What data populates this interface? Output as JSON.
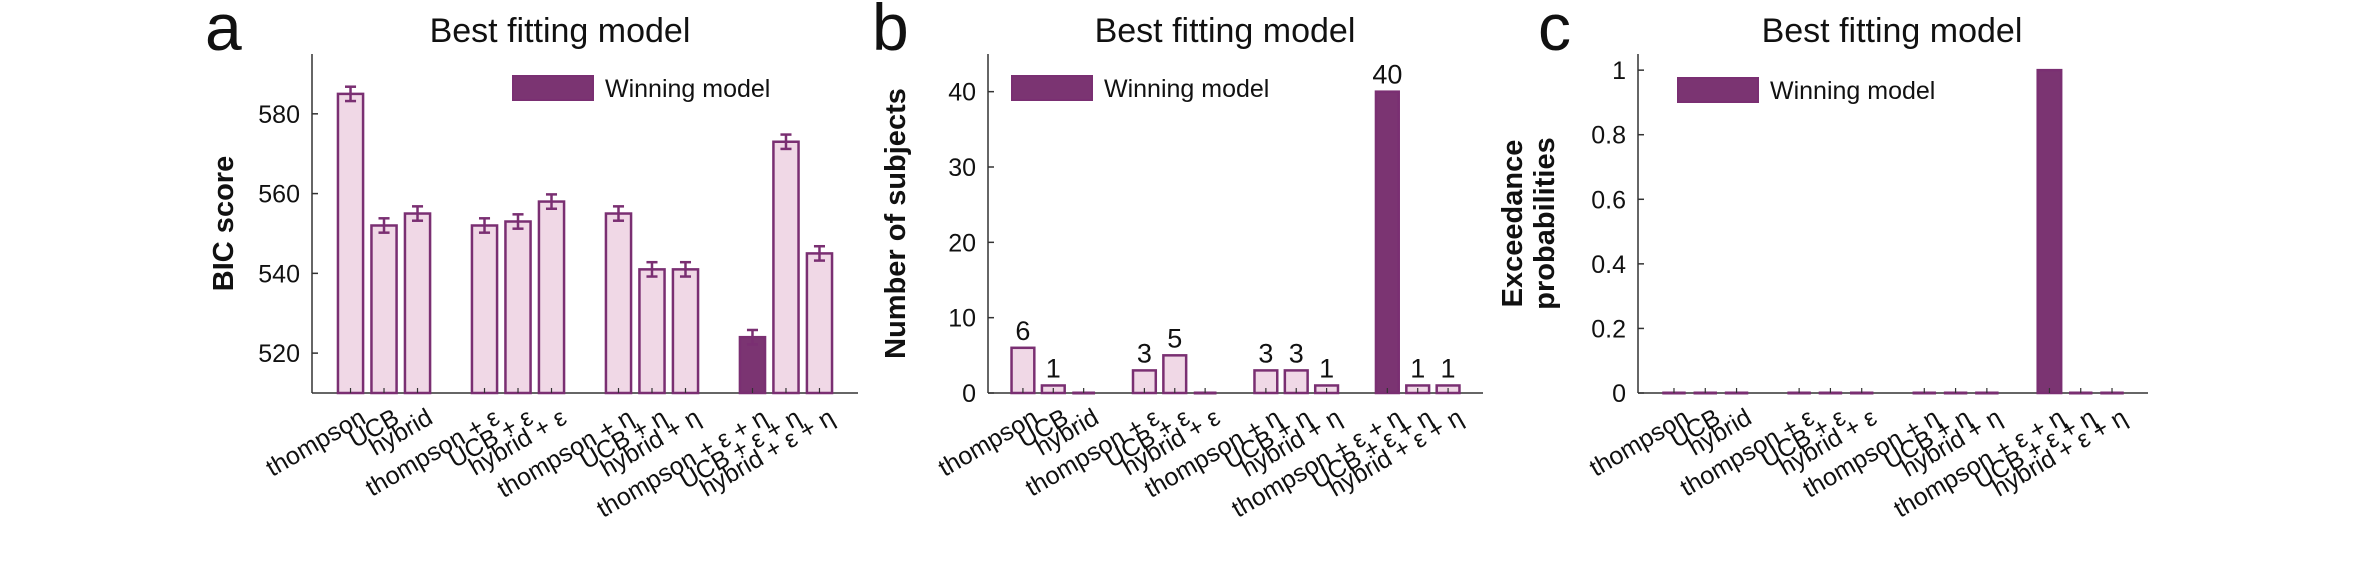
{
  "colors": {
    "bar_fill": "#f0d8e6",
    "bar_stroke": "#7a2f72",
    "winner_fill": "#7b3472",
    "axis": "#333333",
    "text": "#111111"
  },
  "chart_data": [
    {
      "type": "bar",
      "panel_letter": "a",
      "title": "Best fitting model",
      "ylabel": "BIC score",
      "ylim": [
        510,
        595
      ],
      "yticks": [
        520,
        540,
        560,
        580
      ],
      "ytick_labels": [
        "520",
        "540",
        "560",
        "580"
      ],
      "error_bars": true,
      "data_labels": false,
      "legend": {
        "label": "Winning model",
        "placement": "top-right"
      },
      "categories": [
        "thompson",
        "UCB",
        "hybrid",
        "thompson + ε",
        "UCB + ε",
        "hybrid + ε",
        "thompson + η",
        "UCB + η",
        "hybrid + η",
        "thompson + ε + η",
        "UCB + ε + η",
        "hybrid + ε + η"
      ],
      "values": [
        585,
        552,
        555,
        552,
        553,
        558,
        555,
        541,
        541,
        524,
        573,
        545
      ],
      "errors": [
        1.8,
        1.8,
        1.8,
        1.8,
        1.8,
        1.8,
        1.8,
        1.8,
        1.8,
        1.8,
        1.8,
        1.8
      ],
      "winner_index": 9
    },
    {
      "type": "bar",
      "panel_letter": "b",
      "title": "Best fitting model",
      "ylabel": "Number of subjects",
      "ylim": [
        0,
        45
      ],
      "yticks": [
        0,
        10,
        20,
        30,
        40
      ],
      "ytick_labels": [
        "0",
        "10",
        "20",
        "30",
        "40"
      ],
      "error_bars": false,
      "data_labels": true,
      "legend": {
        "label": "Winning model",
        "placement": "top-left"
      },
      "categories": [
        "thompson",
        "UCB",
        "hybrid",
        "thompson + ε",
        "UCB + ε",
        "hybrid + ε",
        "thompson + η",
        "UCB + η",
        "hybrid + η",
        "thompson + ε + η",
        "UCB + ε + η",
        "hybrid + ε + η"
      ],
      "values": [
        6,
        1,
        0,
        3,
        5,
        0,
        3,
        3,
        1,
        40,
        1,
        1
      ],
      "winner_index": 9
    },
    {
      "type": "bar",
      "panel_letter": "c",
      "title": "Best fitting model",
      "ylabel": "Exceedance probabilities",
      "ylabel_lines": [
        "Exceedance",
        "probabilities"
      ],
      "ylim": [
        0,
        1.05
      ],
      "yticks": [
        0,
        0.2,
        0.4,
        0.6,
        0.8,
        1
      ],
      "ytick_labels": [
        "0",
        "0.2",
        "0.4",
        "0.6",
        "0.8",
        "1"
      ],
      "error_bars": false,
      "data_labels": false,
      "legend": {
        "label": "Winning model",
        "placement": "top-left"
      },
      "categories": [
        "thompson",
        "UCB",
        "hybrid",
        "thompson + ε",
        "UCB + ε",
        "hybrid + ε",
        "thompson + η",
        "UCB + η",
        "hybrid + η",
        "thompson + ε + η",
        "UCB + ε + η",
        "hybrid + ε + η"
      ],
      "values": [
        0,
        0,
        0,
        0,
        0,
        0,
        0,
        0,
        0,
        1,
        0,
        0
      ],
      "winner_index": 9
    }
  ]
}
